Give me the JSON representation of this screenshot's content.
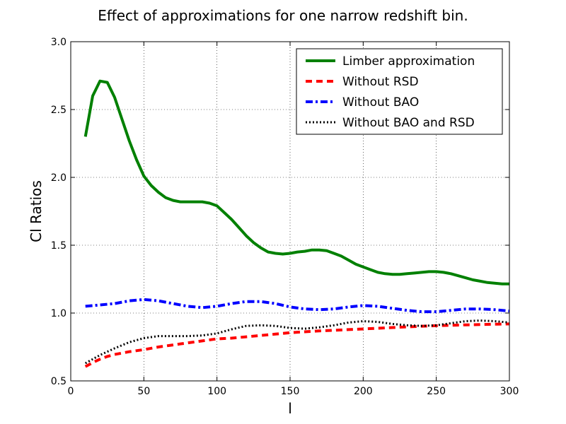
{
  "chart_data": {
    "type": "line",
    "title": "Effect of approximations for one narrow redshift bin.",
    "xlabel": "l",
    "ylabel": "Cl Ratios",
    "xlim": [
      0,
      300
    ],
    "ylim": [
      0.5,
      3.0
    ],
    "xticks": [
      0,
      50,
      100,
      150,
      200,
      250,
      300
    ],
    "xtick_labels": [
      "0",
      "50",
      "100",
      "150",
      "200",
      "250",
      "300"
    ],
    "yticks": [
      0.5,
      1.0,
      1.5,
      2.0,
      2.5,
      3.0
    ],
    "ytick_labels": [
      "0.5",
      "1.0",
      "1.5",
      "2.0",
      "2.5",
      "3.0"
    ],
    "grid": true,
    "legend_position": "top-right",
    "series": [
      {
        "name": "Limber approximation",
        "color": "#008000",
        "style": "solid",
        "x": [
          10,
          15,
          20,
          25,
          30,
          35,
          40,
          45,
          50,
          55,
          60,
          65,
          70,
          75,
          80,
          85,
          90,
          95,
          100,
          105,
          110,
          115,
          120,
          125,
          130,
          135,
          140,
          145,
          150,
          155,
          160,
          165,
          170,
          175,
          180,
          185,
          190,
          195,
          200,
          205,
          210,
          215,
          220,
          225,
          230,
          235,
          240,
          245,
          250,
          255,
          260,
          265,
          270,
          275,
          280,
          285,
          290,
          295,
          300
        ],
        "values": [
          2.3,
          2.6,
          2.71,
          2.7,
          2.59,
          2.43,
          2.27,
          2.13,
          2.01,
          1.94,
          1.89,
          1.85,
          1.83,
          1.82,
          1.82,
          1.82,
          1.82,
          1.81,
          1.79,
          1.74,
          1.69,
          1.63,
          1.57,
          1.52,
          1.48,
          1.45,
          1.44,
          1.435,
          1.44,
          1.45,
          1.455,
          1.465,
          1.465,
          1.46,
          1.44,
          1.42,
          1.39,
          1.36,
          1.34,
          1.32,
          1.3,
          1.29,
          1.285,
          1.285,
          1.29,
          1.295,
          1.3,
          1.305,
          1.305,
          1.3,
          1.29,
          1.275,
          1.26,
          1.245,
          1.235,
          1.225,
          1.22,
          1.215,
          1.215
        ]
      },
      {
        "name": "Without RSD",
        "color": "#ff0000",
        "style": "dashed",
        "x": [
          10,
          15,
          20,
          25,
          30,
          40,
          50,
          60,
          70,
          80,
          90,
          100,
          110,
          120,
          130,
          140,
          150,
          160,
          170,
          180,
          190,
          200,
          210,
          220,
          230,
          240,
          250,
          260,
          270,
          280,
          290,
          300
        ],
        "values": [
          0.605,
          0.635,
          0.66,
          0.68,
          0.695,
          0.715,
          0.73,
          0.75,
          0.765,
          0.78,
          0.795,
          0.81,
          0.815,
          0.825,
          0.835,
          0.845,
          0.855,
          0.862,
          0.868,
          0.873,
          0.878,
          0.883,
          0.888,
          0.893,
          0.898,
          0.903,
          0.907,
          0.91,
          0.913,
          0.915,
          0.918,
          0.92
        ]
      },
      {
        "name": "Without BAO",
        "color": "#0000ff",
        "style": "dashdot",
        "x": [
          10,
          20,
          30,
          40,
          50,
          60,
          70,
          80,
          90,
          100,
          110,
          120,
          130,
          140,
          150,
          160,
          170,
          180,
          190,
          200,
          210,
          220,
          230,
          240,
          250,
          260,
          270,
          280,
          290,
          300
        ],
        "values": [
          1.05,
          1.06,
          1.07,
          1.09,
          1.1,
          1.09,
          1.07,
          1.05,
          1.04,
          1.05,
          1.07,
          1.085,
          1.085,
          1.07,
          1.045,
          1.03,
          1.025,
          1.03,
          1.045,
          1.055,
          1.05,
          1.035,
          1.02,
          1.01,
          1.01,
          1.02,
          1.03,
          1.03,
          1.025,
          1.015
        ]
      },
      {
        "name": "Without BAO and RSD",
        "color": "#000000",
        "style": "dotted",
        "x": [
          10,
          20,
          30,
          40,
          50,
          60,
          70,
          80,
          90,
          100,
          110,
          120,
          130,
          140,
          150,
          160,
          170,
          180,
          190,
          200,
          210,
          220,
          230,
          240,
          250,
          260,
          270,
          280,
          290,
          300
        ],
        "values": [
          0.63,
          0.69,
          0.74,
          0.785,
          0.815,
          0.83,
          0.83,
          0.83,
          0.835,
          0.85,
          0.88,
          0.905,
          0.91,
          0.905,
          0.89,
          0.885,
          0.895,
          0.91,
          0.93,
          0.94,
          0.935,
          0.92,
          0.91,
          0.905,
          0.91,
          0.925,
          0.94,
          0.945,
          0.94,
          0.93
        ]
      }
    ]
  }
}
